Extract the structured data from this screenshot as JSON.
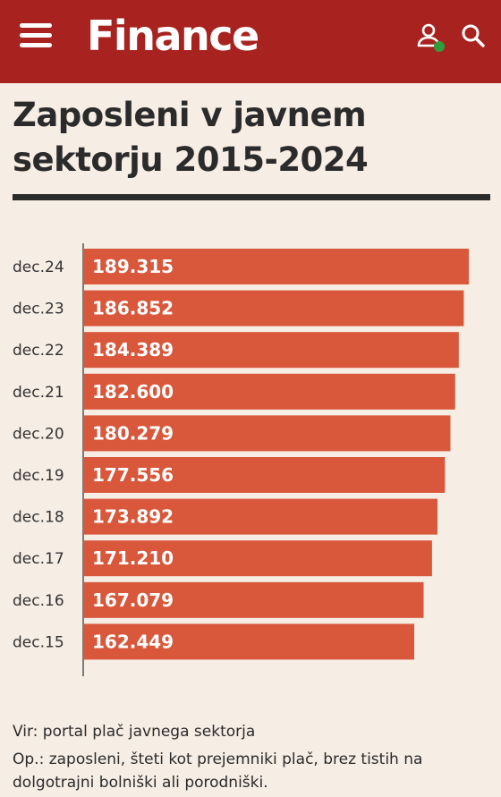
{
  "header": {
    "logo_text": "Finance",
    "icons": [
      "menu-icon",
      "user-icon",
      "search-icon"
    ],
    "brand_color": "#a8231f",
    "online_dot_color": "#2e9e3a"
  },
  "article": {
    "title": "Zaposleni v javnem sektorju 2015-2024",
    "source": "Vir: portal plač javnega sektorja",
    "note": "Op.: zaposleni, šteti kot prejemniki plač, brez tistih na dolgotrajni bolniški ali porodniški."
  },
  "chart_data": {
    "type": "bar",
    "orientation": "horizontal",
    "categories": [
      "dec.24",
      "dec.23",
      "dec.22",
      "dec.21",
      "dec.20",
      "dec.19",
      "dec.18",
      "dec.17",
      "dec.16",
      "dec.15"
    ],
    "values": [
      189315,
      186852,
      184389,
      182600,
      180279,
      177556,
      173892,
      171210,
      167079,
      162449
    ],
    "value_labels": [
      "189.315",
      "186.852",
      "184.389",
      "182.600",
      "180.279",
      "177.556",
      "173.892",
      "171.210",
      "167.079",
      "162.449"
    ],
    "bar_color": "#d9573a",
    "xlim": [
      0,
      189315
    ],
    "grid": false,
    "legend": "none"
  }
}
